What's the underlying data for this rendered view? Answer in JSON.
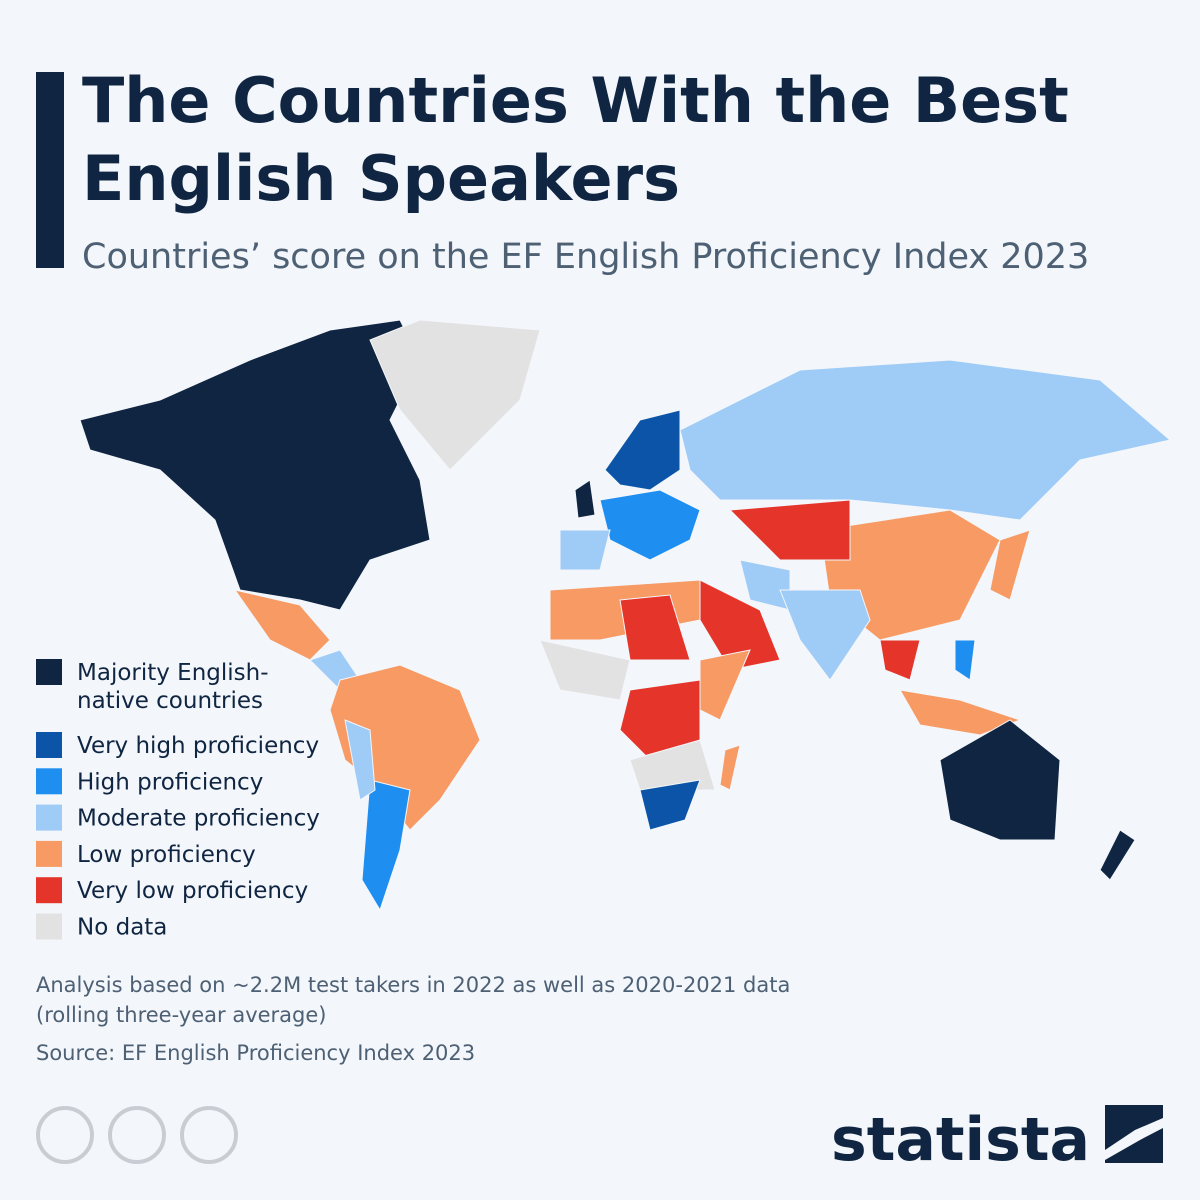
{
  "header": {
    "title_lines": [
      "The Countries With the Best",
      "English Speakers"
    ],
    "subtitle": "Countries’ score on the EF English Proficiency Index 2023"
  },
  "legend": [
    {
      "label_lines": [
        "Majority English-",
        "native countries"
      ],
      "color": "#0f2541"
    },
    {
      "label_lines": [
        "Very high proficiency"
      ],
      "color": "#0b54a8"
    },
    {
      "label_lines": [
        "High proficiency"
      ],
      "color": "#1e8ff0"
    },
    {
      "label_lines": [
        "Moderate proficiency"
      ],
      "color": "#9fcbf7"
    },
    {
      "label_lines": [
        "Low proficiency"
      ],
      "color": "#f79a64"
    },
    {
      "label_lines": [
        "Very low proficiency"
      ],
      "color": "#e5352a"
    },
    {
      "label_lines": [
        "No data"
      ],
      "color": "#e2e2e2"
    }
  ],
  "footer": {
    "note_lines": [
      "Analysis based on ~2.2M test takers in 2022 as well as 2020-2021 data",
      "(rolling three-year average)"
    ],
    "source": "Source: EF English Proficiency Index 2023",
    "brand": "statista"
  }
}
